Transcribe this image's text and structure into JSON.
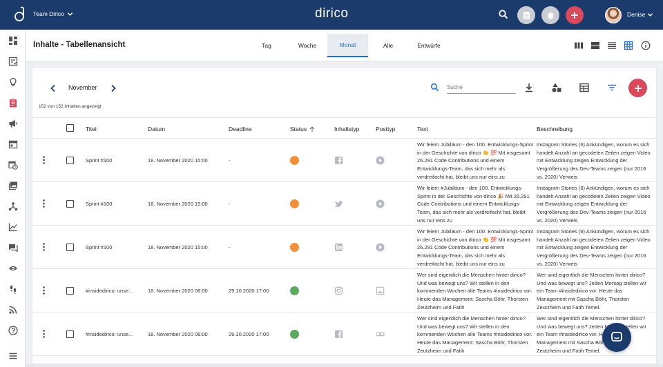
{
  "header": {
    "team": "Team Dirico",
    "brand": "dirico",
    "user": "Denise"
  },
  "colors": {
    "primary": "#1c3b6d",
    "accent": "#d8495c",
    "link": "#1f6fce",
    "status_orange": "#f0913a",
    "status_green": "#5aa95d"
  },
  "sidebar": {
    "icons": [
      "dashboard-icon",
      "checklist-icon",
      "lightbulb-icon",
      "clipboard-icon",
      "megaphone-icon",
      "calendar-icon",
      "calendar-clock-icon",
      "images-icon",
      "network-icon",
      "chart-icon",
      "chat-icon",
      "eye-icon",
      "footsteps-icon",
      "rss-icon",
      "help-icon",
      "menu-icon"
    ]
  },
  "page": {
    "title": "Inhalte - Tabellenansicht",
    "tabs": [
      "Tag",
      "Woche",
      "Monat",
      "Alle",
      "Entwürfe"
    ],
    "active_tab": "Monat"
  },
  "toolbar": {
    "month": "November",
    "count": "152 von 152 Inhalten angezeigt",
    "search_placeholder": "Suche"
  },
  "table": {
    "headers": {
      "title": "Titel",
      "date": "Datum",
      "deadline": "Deadline",
      "status": "Status",
      "content_type": "Inhaltstyp",
      "post_type": "Posttyp",
      "text": "Text",
      "description": "Beschreibung"
    },
    "rows": [
      {
        "title": "Sprint #100",
        "date": "18. November 2020 15:00",
        "deadline": "-",
        "status": "orange",
        "network": "facebook-icon",
        "post": "play-icon",
        "text": "Wir feiern Jubiläum - den 100. Entwicklungs-Sprint in der Geschichte von dirico 👏 💯 Mit insgesamt 26.291 Code Contributions und einem Entwicklungs-Team, das sich mehr als verdreifacht hat, bleibt uns nur eins zu",
        "description": "Instagram Stories (6) Ankündigen, worum es sich handelt Anzahl an gecodeten Zeilen zeigen Video mit Entwicklung zeigen Entwicklung der Vergrößerung des Dev-Teams zeigen (nur 2016 vs. 2020) Verweis"
      },
      {
        "title": "Sprint #100",
        "date": "18. November 2020 15:00",
        "deadline": "-",
        "status": "orange",
        "network": "twitter-icon",
        "post": "play-icon",
        "text": "Wir feiern #Jubiläum - den 100. Entwicklungs-Sprint in der Geschichte von dirico 🎉 Mit 26.291 Code Contributions und einem Entwicklungs-Team, das sich mehr als verdreifacht hat, bleibt uns nur eins zu",
        "description": "Instagram Stories (6) Ankündigen, worum es sich handelt Anzahl an gecodeten Zeilen zeigen Video mit Entwicklung zeigen Entwicklung der Vergrößerung des Dev-Teams zeigen (nur 2016 vs. 2020) Verweis"
      },
      {
        "title": "Sprint #100",
        "date": "18. November 2020 15:00",
        "deadline": "-",
        "status": "orange",
        "network": "linkedin-icon",
        "post": "play-icon",
        "text": "Wir feiern Jubiläum - den 100. Entwicklungs-Sprint in der Geschichte von dirico 👏 💯 Mit insgesamt 26.291 Code Contributions und einem Entwicklungs-Team, das sich mehr als verdreifacht hat, bleibt uns nur eins zu",
        "description": "Instagram Stories (6) Ankündigen, worum es sich handelt Anzahl an gecodeten Zeilen zeigen Video mit Entwicklung zeigen Entwicklung der Vergrößerung des Dev-Teams zeigen (nur 2016 vs. 2020) Verweis"
      },
      {
        "title": "#insidedirico: unse...",
        "date": "18. November 2020 08:00",
        "deadline": "29.10.2020 17:00",
        "status": "green",
        "network": "instagram-icon",
        "post": "image-icon",
        "text": "Wer sind eigentlich die Menschen hinter dirico? Und was bewegt uns? Wir stellen in den kommenden Wochen alle Teams #insidedirico vor. Heute das Management: Sascha Böhr, Thorsten Zeutzheim und Fatih",
        "description": "Wer sind eigentlich die Menschen hinter dirico? Und was bewegt uns? Jeden Montag stellen wir ein Team #insidedirico vor. Heute das Management mit Sascha Böhr, Thorsten Zeutzheim und Fatih Temel."
      },
      {
        "title": "#insidedirico: unse...",
        "date": "18. November 2020 08:00",
        "deadline": "29.10.2020 17:00",
        "status": "green",
        "network": "facebook-icon",
        "post": "link-icon",
        "text": "Wer sind eigentlich die Menschen hinter dirico? Und was bewegt uns? Wir stellen in den kommenden Wochen alle Teams #insidedirico vor. Heute das Management: Sascha Böhr, Thorsten Zeutzheim und Fatih",
        "description": "Wer sind eigentlich die Menschen hinter dirico? Und was bewegt uns? Jeden Montag stellen wir ein Team #insidedirico vor. Heute das Management mit Sascha Böhr, Thorsten Zeutzheim und Fatih Temel."
      }
    ]
  }
}
